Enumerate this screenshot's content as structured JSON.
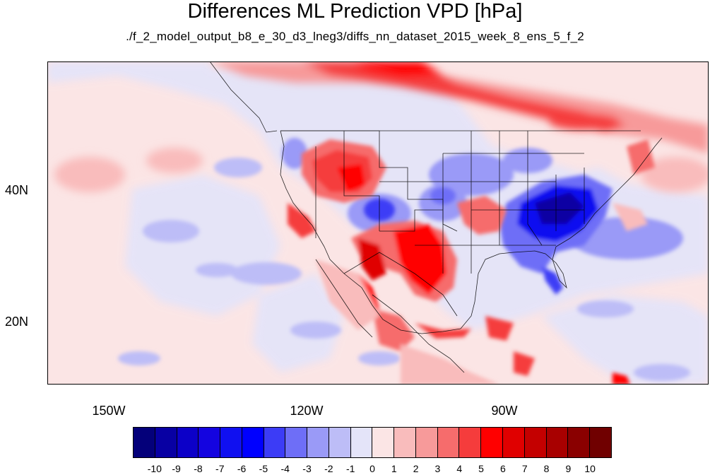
{
  "title": "Differences ML Prediction VPD [hPa]",
  "subtitle": "./f_2_model_output_b8_e_30_d3_lneg3/diffs_nn_dataset_2015_week_8_ens_5_f_2",
  "map": {
    "lat_range": [
      11,
      60
    ],
    "lon_range": [
      -159,
      -59
    ],
    "lat_labels": [
      "40N",
      "20N"
    ],
    "lon_labels": [
      "150W",
      "120W",
      "90W"
    ]
  },
  "colorbar": {
    "labels": [
      "-10",
      "-9",
      "-8",
      "-7",
      "-6",
      "-5",
      "-4",
      "-3",
      "-2",
      "-1",
      "0",
      "1",
      "2",
      "3",
      "4",
      "5",
      "6",
      "7",
      "8",
      "9",
      "10"
    ],
    "colors": [
      "#04007a",
      "#0800a3",
      "#0c00c8",
      "#1404e0",
      "#1010f0",
      "#0000ff",
      "#3c3cf6",
      "#6e6ef7",
      "#9a9af7",
      "#bdbdf7",
      "#e4e4f9",
      "#fbe5e5",
      "#f9bcbc",
      "#f79a9a",
      "#f66c6c",
      "#f53c3c",
      "#ff0000",
      "#e00000",
      "#c40000",
      "#a80000",
      "#8a0000",
      "#700000"
    ]
  }
}
